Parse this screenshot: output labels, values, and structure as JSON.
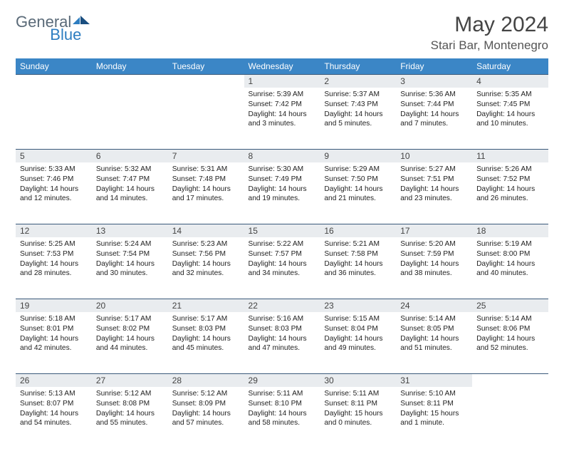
{
  "brand": {
    "part1": "General",
    "part2": "Blue"
  },
  "title": "May 2024",
  "location": "Stari Bar, Montenegro",
  "colors": {
    "header_bg": "#3b86c6",
    "header_fg": "#ffffff",
    "daynum_bg": "#e9ecef",
    "divider": "#3a5a7a",
    "logo_gray": "#5a6a78",
    "logo_blue": "#2d7dc0"
  },
  "weekdays": [
    "Sunday",
    "Monday",
    "Tuesday",
    "Wednesday",
    "Thursday",
    "Friday",
    "Saturday"
  ],
  "weeks": [
    [
      null,
      null,
      null,
      {
        "n": "1",
        "sr": "5:39 AM",
        "ss": "7:42 PM",
        "dl": "14 hours and 3 minutes."
      },
      {
        "n": "2",
        "sr": "5:37 AM",
        "ss": "7:43 PM",
        "dl": "14 hours and 5 minutes."
      },
      {
        "n": "3",
        "sr": "5:36 AM",
        "ss": "7:44 PM",
        "dl": "14 hours and 7 minutes."
      },
      {
        "n": "4",
        "sr": "5:35 AM",
        "ss": "7:45 PM",
        "dl": "14 hours and 10 minutes."
      }
    ],
    [
      {
        "n": "5",
        "sr": "5:33 AM",
        "ss": "7:46 PM",
        "dl": "14 hours and 12 minutes."
      },
      {
        "n": "6",
        "sr": "5:32 AM",
        "ss": "7:47 PM",
        "dl": "14 hours and 14 minutes."
      },
      {
        "n": "7",
        "sr": "5:31 AM",
        "ss": "7:48 PM",
        "dl": "14 hours and 17 minutes."
      },
      {
        "n": "8",
        "sr": "5:30 AM",
        "ss": "7:49 PM",
        "dl": "14 hours and 19 minutes."
      },
      {
        "n": "9",
        "sr": "5:29 AM",
        "ss": "7:50 PM",
        "dl": "14 hours and 21 minutes."
      },
      {
        "n": "10",
        "sr": "5:27 AM",
        "ss": "7:51 PM",
        "dl": "14 hours and 23 minutes."
      },
      {
        "n": "11",
        "sr": "5:26 AM",
        "ss": "7:52 PM",
        "dl": "14 hours and 26 minutes."
      }
    ],
    [
      {
        "n": "12",
        "sr": "5:25 AM",
        "ss": "7:53 PM",
        "dl": "14 hours and 28 minutes."
      },
      {
        "n": "13",
        "sr": "5:24 AM",
        "ss": "7:54 PM",
        "dl": "14 hours and 30 minutes."
      },
      {
        "n": "14",
        "sr": "5:23 AM",
        "ss": "7:56 PM",
        "dl": "14 hours and 32 minutes."
      },
      {
        "n": "15",
        "sr": "5:22 AM",
        "ss": "7:57 PM",
        "dl": "14 hours and 34 minutes."
      },
      {
        "n": "16",
        "sr": "5:21 AM",
        "ss": "7:58 PM",
        "dl": "14 hours and 36 minutes."
      },
      {
        "n": "17",
        "sr": "5:20 AM",
        "ss": "7:59 PM",
        "dl": "14 hours and 38 minutes."
      },
      {
        "n": "18",
        "sr": "5:19 AM",
        "ss": "8:00 PM",
        "dl": "14 hours and 40 minutes."
      }
    ],
    [
      {
        "n": "19",
        "sr": "5:18 AM",
        "ss": "8:01 PM",
        "dl": "14 hours and 42 minutes."
      },
      {
        "n": "20",
        "sr": "5:17 AM",
        "ss": "8:02 PM",
        "dl": "14 hours and 44 minutes."
      },
      {
        "n": "21",
        "sr": "5:17 AM",
        "ss": "8:03 PM",
        "dl": "14 hours and 45 minutes."
      },
      {
        "n": "22",
        "sr": "5:16 AM",
        "ss": "8:03 PM",
        "dl": "14 hours and 47 minutes."
      },
      {
        "n": "23",
        "sr": "5:15 AM",
        "ss": "8:04 PM",
        "dl": "14 hours and 49 minutes."
      },
      {
        "n": "24",
        "sr": "5:14 AM",
        "ss": "8:05 PM",
        "dl": "14 hours and 51 minutes."
      },
      {
        "n": "25",
        "sr": "5:14 AM",
        "ss": "8:06 PM",
        "dl": "14 hours and 52 minutes."
      }
    ],
    [
      {
        "n": "26",
        "sr": "5:13 AM",
        "ss": "8:07 PM",
        "dl": "14 hours and 54 minutes."
      },
      {
        "n": "27",
        "sr": "5:12 AM",
        "ss": "8:08 PM",
        "dl": "14 hours and 55 minutes."
      },
      {
        "n": "28",
        "sr": "5:12 AM",
        "ss": "8:09 PM",
        "dl": "14 hours and 57 minutes."
      },
      {
        "n": "29",
        "sr": "5:11 AM",
        "ss": "8:10 PM",
        "dl": "14 hours and 58 minutes."
      },
      {
        "n": "30",
        "sr": "5:11 AM",
        "ss": "8:11 PM",
        "dl": "15 hours and 0 minutes."
      },
      {
        "n": "31",
        "sr": "5:10 AM",
        "ss": "8:11 PM",
        "dl": "15 hours and 1 minute."
      },
      null
    ]
  ],
  "labels": {
    "sunrise": "Sunrise:",
    "sunset": "Sunset:",
    "daylight": "Daylight:"
  }
}
